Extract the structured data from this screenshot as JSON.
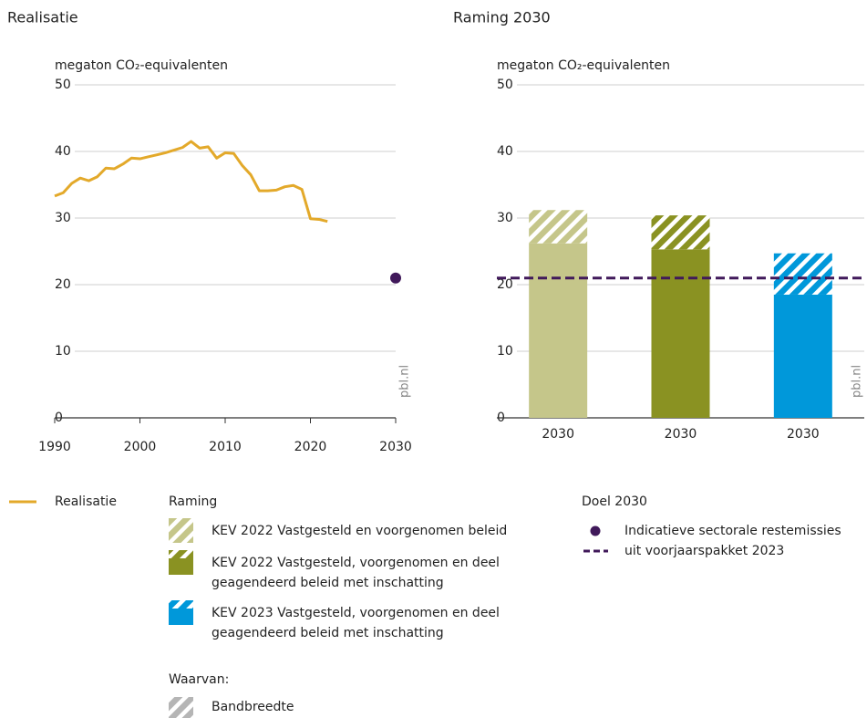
{
  "chart_data": [
    {
      "type": "line",
      "title": "Realisatie",
      "ylabel": "megaton CO₂-equivalenten",
      "source": "pbl.nl",
      "x": [
        1990,
        1991,
        1992,
        1993,
        1994,
        1995,
        1996,
        1997,
        1998,
        1999,
        2000,
        2001,
        2002,
        2003,
        2004,
        2005,
        2006,
        2007,
        2008,
        2009,
        2010,
        2011,
        2012,
        2013,
        2014,
        2015,
        2016,
        2017,
        2018,
        2019,
        2020,
        2021,
        2022
      ],
      "values": [
        33.3,
        33.8,
        35.2,
        36.0,
        35.6,
        36.2,
        37.5,
        37.4,
        38.1,
        39.0,
        38.9,
        39.2,
        39.5,
        39.8,
        40.2,
        40.6,
        41.5,
        40.5,
        40.7,
        39.0,
        39.8,
        39.7,
        37.9,
        36.5,
        34.1,
        34.1,
        34.2,
        34.7,
        34.9,
        34.3,
        29.9,
        29.8,
        29.5
      ],
      "color": "#e3a92a",
      "target": {
        "x": 2030,
        "value": 21,
        "color": "#40195a"
      },
      "xlim": [
        1990,
        2030
      ],
      "xticks": [
        1990,
        2000,
        2010,
        2020,
        2030
      ],
      "ylim": [
        0,
        50
      ],
      "yticks": [
        0,
        10,
        20,
        30,
        40,
        50
      ],
      "grid": true
    },
    {
      "type": "bar",
      "title": "Raming 2030",
      "ylabel": "megaton CO₂-equivalenten",
      "source": "pbl.nl",
      "categories": [
        "2030",
        "2030",
        "2030"
      ],
      "values": [
        26.2,
        25.3,
        18.5
      ],
      "band": [
        5.0,
        5.1,
        6.2
      ],
      "colors": [
        "#c5c68a",
        "#8a9222",
        "#0098da"
      ],
      "target": 21,
      "target_color": "#40195a",
      "ylim": [
        0,
        50
      ],
      "yticks": [
        0,
        10,
        20,
        30,
        40,
        50
      ],
      "grid": true
    }
  ],
  "legend": {
    "realisatie": "Realisatie",
    "raming": "Raming",
    "items": [
      {
        "lines": [
          "KEV 2022 Vastgesteld en voorgenomen beleid"
        ]
      },
      {
        "lines": [
          "KEV 2022 Vastgesteld, voorgenomen en deel",
          "geagendeerd beleid met inschatting"
        ]
      },
      {
        "lines": [
          "KEV 2023 Vastgesteld, voorgenomen en deel",
          "geagendeerd beleid met inschatting"
        ]
      }
    ],
    "waarvan": "Waarvan:",
    "bandbreedte": "Bandbreedte",
    "doel": "Doel 2030",
    "doel_lines": [
      "Indicatieve sectorale restemissies",
      "uit voorjaarspakket 2023"
    ]
  }
}
